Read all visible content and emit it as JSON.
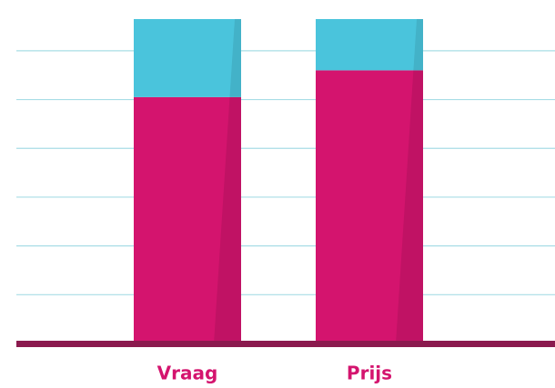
{
  "chart_data": {
    "type": "stacked-bar",
    "categories": [
      "Vraag",
      "Prijs"
    ],
    "series": [
      {
        "color": "#d4146e",
        "values": [
          5.05,
          5.6
        ]
      },
      {
        "color": "#4ac4dc",
        "values": [
          1.6,
          1.05
        ]
      }
    ],
    "ylim": [
      0,
      6.65
    ],
    "yticks": [
      1,
      2,
      3,
      4,
      5,
      6
    ],
    "grid": true,
    "grid_color": "#a8dde6",
    "baseline_color": "#8b1a4e",
    "label_color": "#d4146e"
  }
}
